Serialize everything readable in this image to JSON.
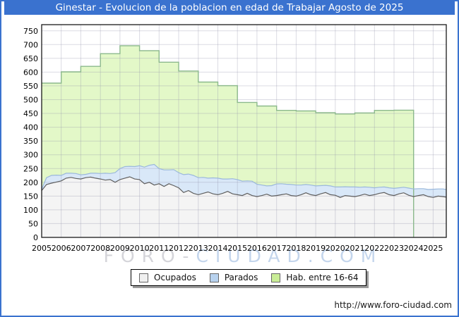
{
  "frame": {
    "title": "Ginestar - Evolucion de la poblacion en edad de Trabajar Agosto de 2025",
    "url": "http://www.foro-ciudad.com",
    "accent_color": "#3a72cf"
  },
  "watermark": {
    "part1": "FORO-",
    "part2": "CIUDAD.COM"
  },
  "legend": {
    "items": [
      {
        "label": "Ocupados",
        "fill": "#f0f0f0",
        "border": "#666666"
      },
      {
        "label": "Parados",
        "fill": "#b8d2ee",
        "border": "#666666"
      },
      {
        "label": "Hab. entre 16-64",
        "fill": "#c9ed97",
        "border": "#666666"
      }
    ]
  },
  "chart_data": {
    "type": "area",
    "title": "Ginestar - Evolucion de la poblacion en edad de Trabajar Agosto de 2025",
    "xlabel": "",
    "ylabel": "",
    "grid": true,
    "legend_position": "bottom",
    "x_axis": {
      "start_year": 2005,
      "end_year": 2025,
      "data_end": 2025.67,
      "tick_step": 1
    },
    "y_axis": {
      "min": 0,
      "max": 750,
      "step": 50
    },
    "series": [
      {
        "name": "Hab. entre 16-64",
        "role": "total-background",
        "style": "yearly-steps",
        "color_fill": "#e3f8c8",
        "color_line": "#8cb98c",
        "years_start": 2005,
        "ends_at": 2024,
        "values": [
          560,
          601,
          621,
          667,
          696,
          678,
          636,
          604,
          564,
          551,
          490,
          477,
          461,
          459,
          453,
          448,
          452,
          461,
          462
        ]
      },
      {
        "name": "Ocupados",
        "role": "stack-base",
        "style": "line-area",
        "color_fill": "#f4f4f4",
        "color_line": "#5f5f5f",
        "x_start": 2005,
        "x_step": 0.25,
        "x_extra_end": 2025.67,
        "values": [
          170,
          192,
          197,
          201,
          205,
          215,
          218,
          214,
          212,
          217,
          219,
          215,
          212,
          208,
          210,
          200,
          210,
          215,
          220,
          212,
          210,
          195,
          200,
          190,
          195,
          185,
          195,
          188,
          180,
          163,
          170,
          160,
          155,
          160,
          165,
          158,
          155,
          160,
          167,
          158,
          155,
          152,
          160,
          152,
          148,
          152,
          157,
          150,
          152,
          155,
          158,
          152,
          150,
          155,
          162,
          155,
          152,
          158,
          163,
          155,
          153,
          145,
          152,
          150,
          148,
          152,
          157,
          152,
          155,
          160,
          163,
          155,
          152,
          158,
          162,
          153,
          148,
          152,
          155,
          148,
          145,
          150,
          148,
          146
        ]
      },
      {
        "name": "Parados",
        "role": "stacked-on-base",
        "style": "line-area",
        "color_fill": "#d9e8f8",
        "color_line": "#9bb8dc",
        "x_start": 2005,
        "x_step": 0.25,
        "x_extra_end": 2025.67,
        "values": [
          5,
          25,
          28,
          25,
          20,
          18,
          15,
          18,
          15,
          12,
          14,
          18,
          20,
          25,
          22,
          35,
          40,
          42,
          38,
          45,
          50,
          60,
          62,
          75,
          55,
          60,
          50,
          58,
          55,
          65,
          60,
          65,
          62,
          58,
          50,
          58,
          60,
          52,
          45,
          55,
          55,
          52,
          45,
          52,
          45,
          38,
          30,
          38,
          42,
          40,
          35,
          40,
          40,
          35,
          30,
          35,
          35,
          30,
          26,
          32,
          30,
          38,
          32,
          33,
          35,
          30,
          26,
          30,
          25,
          22,
          20,
          25,
          26,
          22,
          20,
          26,
          28,
          25,
          22,
          26,
          30,
          26,
          28,
          28
        ]
      }
    ]
  }
}
